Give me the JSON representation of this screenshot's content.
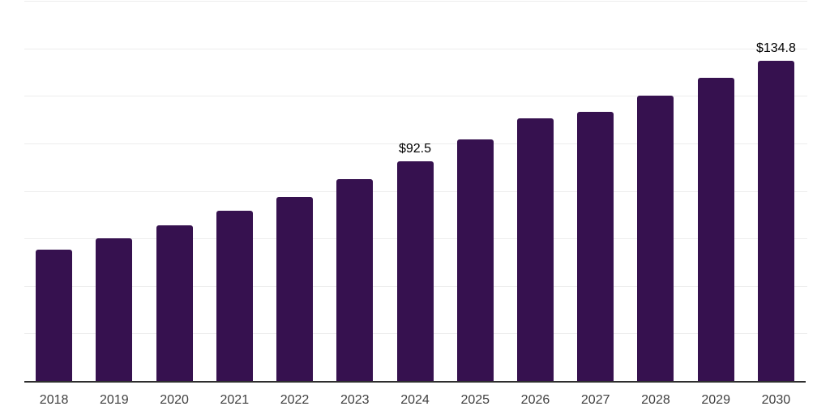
{
  "chart_data": {
    "type": "bar",
    "title": "",
    "xlabel": "",
    "ylabel": "",
    "categories": [
      "2018",
      "2019",
      "2020",
      "2021",
      "2022",
      "2023",
      "2024",
      "2025",
      "2026",
      "2027",
      "2028",
      "2029",
      "2030"
    ],
    "values": [
      55.1,
      59.9,
      65.4,
      71.5,
      77.6,
      84.8,
      92.5,
      101.5,
      110.7,
      113.4,
      120.0,
      127.5,
      134.8
    ],
    "data_labels": [
      {
        "category": "2024",
        "text": "$92.5"
      },
      {
        "category": "2030",
        "text": "$134.8"
      }
    ],
    "ylim": [
      0,
      160
    ],
    "gridline_step": 20,
    "grid": true,
    "legend": false,
    "y_tick_labels_visible": false,
    "colors": {
      "bar": "#36114F",
      "gridline": "#EDEDED",
      "axis_line": "#2E2E2E",
      "tick_label": "#404040",
      "data_label": "#000000",
      "background": "#FFFFFF"
    }
  }
}
